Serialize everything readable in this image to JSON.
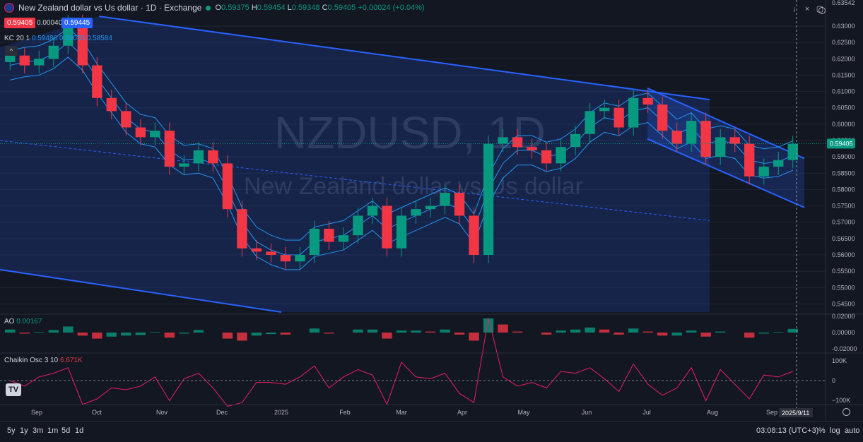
{
  "header": {
    "title": "New Zealand dollar vs Us dollar · 1D · Exchange",
    "o_label": "O",
    "o": "0.59375",
    "h_label": "H",
    "h": "0.59454",
    "l_label": "L",
    "l": "0.59348",
    "c_label": "C",
    "c": "0.59405",
    "change": "+0.00024 (+0.04%)"
  },
  "trade": {
    "sell": "0.59405",
    "spread": "0.00040",
    "buy": "0.59445"
  },
  "kc": {
    "name": "KC",
    "params": "20 1",
    "upper": "0.59486",
    "middle": "0.59035",
    "lower": "0.58584"
  },
  "watermark": {
    "symbol": "NZDUSD, 1D",
    "name": "New Zealand dollar vs Us dollar"
  },
  "toolbar": {
    "collapse": "^",
    "down": "↓",
    "close": "×",
    "maximize": "▢"
  },
  "price_axis": {
    "top_label": "0.63542",
    "ticks": [
      "0.63000",
      "0.62500",
      "0.62000",
      "0.61500",
      "0.61000",
      "0.60500",
      "0.60000",
      "0.59500",
      "0.59000",
      "0.58500",
      "0.58000",
      "0.57500",
      "0.57000",
      "0.56500",
      "0.56000",
      "0.55500",
      "0.55000",
      "0.54500"
    ],
    "current": "0.59405"
  },
  "ao": {
    "label": "AO",
    "value": "0.00167",
    "ticks": [
      "0.02000",
      "0.00000",
      "-0.02000"
    ]
  },
  "chaikin": {
    "label": "Chaikin Osc",
    "params": "3 10",
    "value": "6.671K",
    "ticks": [
      "100K",
      "0",
      "−100K"
    ]
  },
  "time_axis": {
    "labels": [
      "Sep",
      "Oct",
      "Nov",
      "Dec",
      "2025",
      "Feb",
      "Mar",
      "Apr",
      "May",
      "Jun",
      "Jul",
      "Aug",
      "Sep"
    ],
    "cursor_date": "2025/9/11"
  },
  "timeframes": [
    "5y",
    "1y",
    "3m",
    "1m",
    "5d",
    "1d"
  ],
  "status": {
    "clock": "03:08:13 (UTC+3)",
    "percent": "%",
    "log": "log",
    "auto": "auto"
  },
  "logo": "TV",
  "colors": {
    "up": "#089981",
    "down": "#f23645",
    "channel": "#2962ff",
    "kc": "#2196f3",
    "bg": "#131722"
  },
  "chart_data": {
    "type": "candlestick",
    "title": "New Zealand dollar vs Us dollar · 1D · Exchange",
    "ylim": [
      0.5425,
      0.6354
    ],
    "x": [
      "2024-08-26",
      "2024-09-02",
      "2024-09-09",
      "2024-09-16",
      "2024-09-23",
      "2024-09-30",
      "2024-10-07",
      "2024-10-14",
      "2024-10-21",
      "2024-10-28",
      "2024-11-04",
      "2024-11-11",
      "2024-11-18",
      "2024-11-25",
      "2024-12-02",
      "2024-12-09",
      "2024-12-16",
      "2024-12-23",
      "2024-12-30",
      "2025-01-06",
      "2025-01-13",
      "2025-01-20",
      "2025-01-27",
      "2025-02-03",
      "2025-02-10",
      "2025-02-17",
      "2025-02-24",
      "2025-03-03",
      "2025-03-10",
      "2025-03-17",
      "2025-03-24",
      "2025-03-31",
      "2025-04-07",
      "2025-04-14",
      "2025-04-21",
      "2025-04-28",
      "2025-05-05",
      "2025-05-12",
      "2025-05-19",
      "2025-05-26",
      "2025-06-02",
      "2025-06-09",
      "2025-06-16",
      "2025-06-23",
      "2025-06-30",
      "2025-07-07",
      "2025-07-14",
      "2025-07-21",
      "2025-07-28",
      "2025-08-04",
      "2025-08-11",
      "2025-08-18",
      "2025-08-25",
      "2025-09-01",
      "2025-09-08"
    ],
    "close": [
      0.621,
      0.618,
      0.62,
      0.624,
      0.631,
      0.618,
      0.608,
      0.604,
      0.599,
      0.596,
      0.598,
      0.587,
      0.588,
      0.592,
      0.588,
      0.574,
      0.562,
      0.561,
      0.56,
      0.558,
      0.56,
      0.568,
      0.564,
      0.566,
      0.572,
      0.575,
      0.562,
      0.572,
      0.574,
      0.575,
      0.579,
      0.572,
      0.56,
      0.594,
      0.596,
      0.593,
      0.592,
      0.588,
      0.593,
      0.597,
      0.604,
      0.605,
      0.599,
      0.608,
      0.606,
      0.598,
      0.594,
      0.601,
      0.59,
      0.596,
      0.594,
      0.584,
      0.587,
      0.589,
      0.594
    ],
    "series": [
      {
        "name": "Price",
        "values": [
          0.621,
          0.618,
          0.62,
          0.624,
          0.631,
          0.618,
          0.608,
          0.604,
          0.599,
          0.596,
          0.598,
          0.587,
          0.588,
          0.592,
          0.588,
          0.574,
          0.562,
          0.561,
          0.56,
          0.558,
          0.56,
          0.568,
          0.564,
          0.566,
          0.572,
          0.575,
          0.562,
          0.572,
          0.574,
          0.575,
          0.579,
          0.572,
          0.56,
          0.594,
          0.596,
          0.593,
          0.592,
          0.588,
          0.593,
          0.597,
          0.604,
          0.605,
          0.599,
          0.608,
          0.606,
          0.598,
          0.594,
          0.601,
          0.59,
          0.596,
          0.594,
          0.584,
          0.587,
          0.589,
          0.594
        ]
      },
      {
        "name": "KC",
        "values": [
          0.618,
          0.619,
          0.6195,
          0.6215,
          0.625,
          0.621,
          0.614,
          0.608,
          0.602,
          0.5985,
          0.5975,
          0.592,
          0.589,
          0.5895,
          0.588,
          0.58,
          0.57,
          0.564,
          0.5615,
          0.56,
          0.56,
          0.564,
          0.565,
          0.566,
          0.569,
          0.572,
          0.568,
          0.57,
          0.572,
          0.574,
          0.576,
          0.574,
          0.568,
          0.58,
          0.588,
          0.592,
          0.592,
          0.59,
          0.591,
          0.594,
          0.599,
          0.602,
          0.601,
          0.604,
          0.605,
          0.601,
          0.597,
          0.599,
          0.594,
          0.595,
          0.594,
          0.589,
          0.588,
          0.5885,
          0.5904
        ]
      }
    ]
  }
}
